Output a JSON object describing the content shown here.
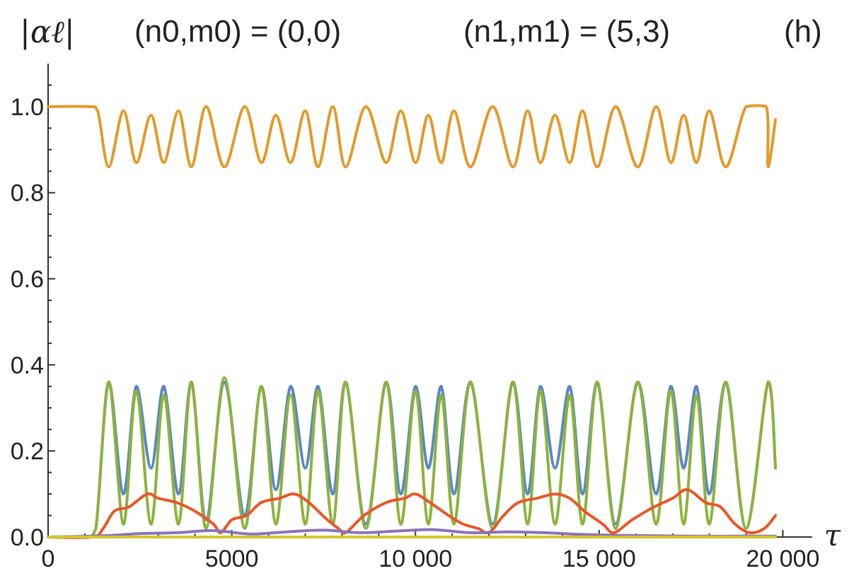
{
  "header": {
    "ylabel": "|αℓ|",
    "label_left": "(n0,m0) = (0,0)",
    "label_right": "(n1,m1) = (5,3)",
    "panel": "(h)"
  },
  "chart_data": {
    "type": "line",
    "xlabel": "τ",
    "ylabel": "|αℓ|",
    "xlim": [
      0,
      20800
    ],
    "ylim": [
      0,
      1.1
    ],
    "xticks": [
      0,
      5000,
      10000,
      15000,
      20000
    ],
    "xtick_labels": [
      "0",
      "5000",
      "10 000",
      "15 000",
      "20 000"
    ],
    "yticks": [
      0,
      0.2,
      0.4,
      0.6,
      0.8,
      1.0
    ],
    "ytick_labels": [
      "0.0",
      "0.2",
      "0.4",
      "0.6",
      "0.8",
      "1.0"
    ],
    "grid": false,
    "series": [
      {
        "color": "#E39A2A",
        "x": [
          0,
          1100,
          1350,
          1650,
          2050,
          2400,
          2800,
          3150,
          3550,
          3900,
          4300,
          4800,
          5350,
          5800,
          6200,
          6600,
          7000,
          7350,
          7750,
          8100,
          8650,
          9200,
          9600,
          10000,
          10350,
          10700,
          11050,
          11500,
          12100,
          12650,
          13050,
          13400,
          13800,
          14200,
          14550,
          14950,
          15450,
          16050,
          16550,
          16950,
          17300,
          17650,
          18000,
          18450,
          19000,
          19550,
          19600,
          19800
        ],
        "y": [
          1.0,
          1.0,
          0.99,
          0.86,
          0.99,
          0.87,
          0.98,
          0.87,
          0.99,
          0.86,
          1.0,
          0.86,
          1.0,
          0.87,
          0.98,
          0.87,
          0.99,
          0.86,
          1.0,
          0.86,
          1.0,
          0.87,
          0.99,
          0.87,
          0.98,
          0.87,
          0.99,
          0.86,
          1.0,
          0.86,
          0.99,
          0.87,
          0.98,
          0.87,
          0.99,
          0.86,
          1.0,
          0.86,
          1.0,
          0.87,
          0.98,
          0.87,
          0.99,
          0.86,
          1.0,
          1.0,
          0.86,
          0.97
        ]
      },
      {
        "color": "#5B87C5",
        "x": [
          0,
          1000,
          1300,
          1650,
          2050,
          2400,
          2800,
          3150,
          3550,
          3900,
          4300,
          4800,
          5350,
          5800,
          6200,
          6600,
          7000,
          7350,
          7750,
          8100,
          8650,
          9200,
          9600,
          10000,
          10350,
          10700,
          11050,
          11500,
          12100,
          12650,
          13050,
          13400,
          13800,
          14200,
          14550,
          14950,
          15450,
          16050,
          16550,
          16950,
          17300,
          17650,
          18000,
          18450,
          19000,
          19600,
          19800
        ],
        "y": [
          0.0,
          0.0,
          0.02,
          0.36,
          0.1,
          0.35,
          0.16,
          0.35,
          0.1,
          0.36,
          0.04,
          0.36,
          0.05,
          0.35,
          0.11,
          0.35,
          0.16,
          0.35,
          0.1,
          0.36,
          0.03,
          0.36,
          0.1,
          0.35,
          0.16,
          0.35,
          0.1,
          0.36,
          0.03,
          0.36,
          0.1,
          0.35,
          0.16,
          0.35,
          0.1,
          0.36,
          0.03,
          0.36,
          0.1,
          0.35,
          0.16,
          0.35,
          0.1,
          0.36,
          0.02,
          0.36,
          0.16
        ]
      },
      {
        "color": "#8DB33A",
        "x": [
          0,
          1000,
          1300,
          1650,
          2050,
          2400,
          2800,
          3150,
          3550,
          3900,
          4300,
          4800,
          5350,
          5800,
          6200,
          6600,
          7000,
          7350,
          7750,
          8100,
          8650,
          9200,
          9600,
          10000,
          10350,
          10700,
          11050,
          11500,
          12100,
          12650,
          13050,
          13400,
          13800,
          14200,
          14550,
          14950,
          15450,
          16050,
          16550,
          16950,
          17300,
          17650,
          18000,
          18450,
          19000,
          19600,
          19800
        ],
        "y": [
          0.0,
          0.0,
          0.02,
          0.36,
          0.03,
          0.34,
          0.03,
          0.33,
          0.03,
          0.36,
          0.02,
          0.37,
          0.02,
          0.35,
          0.03,
          0.33,
          0.03,
          0.34,
          0.03,
          0.36,
          0.02,
          0.36,
          0.03,
          0.34,
          0.03,
          0.33,
          0.03,
          0.36,
          0.02,
          0.36,
          0.03,
          0.34,
          0.03,
          0.33,
          0.03,
          0.36,
          0.02,
          0.36,
          0.03,
          0.34,
          0.03,
          0.33,
          0.03,
          0.36,
          0.02,
          0.36,
          0.16
        ]
      },
      {
        "color": "#E8572A",
        "x": [
          0,
          1200,
          1500,
          1800,
          2200,
          2700,
          3000,
          3500,
          4000,
          4500,
          4700,
          5000,
          5400,
          5800,
          6300,
          6700,
          7100,
          7600,
          7900,
          8100,
          8600,
          9200,
          9700,
          10000,
          10400,
          10900,
          11300,
          11700,
          12000,
          12400,
          12800,
          13300,
          13800,
          14200,
          14600,
          15100,
          15400,
          15900,
          16500,
          17000,
          17400,
          17900,
          18300,
          18700,
          19100,
          19500,
          19800
        ],
        "y": [
          0.0,
          0.0,
          0.02,
          0.06,
          0.07,
          0.1,
          0.09,
          0.08,
          0.06,
          0.03,
          0.01,
          0.04,
          0.05,
          0.08,
          0.09,
          0.1,
          0.08,
          0.04,
          0.02,
          0.01,
          0.05,
          0.08,
          0.09,
          0.1,
          0.08,
          0.05,
          0.03,
          0.02,
          0.01,
          0.05,
          0.08,
          0.09,
          0.1,
          0.09,
          0.06,
          0.03,
          0.01,
          0.04,
          0.07,
          0.09,
          0.11,
          0.08,
          0.07,
          0.03,
          0.01,
          0.02,
          0.05
        ]
      },
      {
        "color": "#8873BB",
        "x": [
          0,
          1500,
          2500,
          3500,
          4500,
          5500,
          6500,
          7500,
          8500,
          9500,
          10500,
          11500,
          12500,
          13500,
          14500,
          15500,
          16500,
          17500,
          18500,
          19500,
          19800
        ],
        "y": [
          0.0,
          0.003,
          0.008,
          0.01,
          0.015,
          0.007,
          0.012,
          0.016,
          0.01,
          0.014,
          0.017,
          0.01,
          0.012,
          0.01,
          0.006,
          0.004,
          0.003,
          0.002,
          0.002,
          0.002,
          0.002
        ]
      },
      {
        "color": "#D4C52A",
        "x": [
          0,
          19800
        ],
        "y": [
          0.0,
          0.0
        ]
      }
    ]
  }
}
